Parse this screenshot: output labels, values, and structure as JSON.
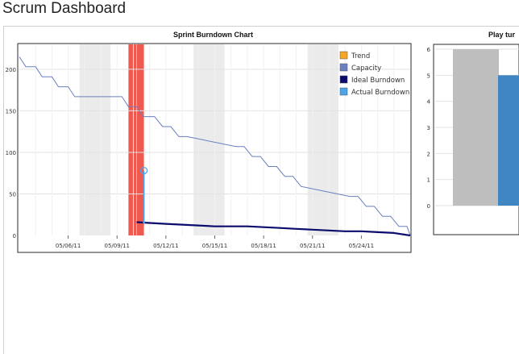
{
  "page": {
    "title": "Scrum Dashboard"
  },
  "burndown": {
    "title": "Sprint Burndown Chart",
    "legend": [
      {
        "label": "Trend",
        "color": "#f5a623"
      },
      {
        "label": "Capacity",
        "color": "#6b7fc0"
      },
      {
        "label": "Ideal Burndown",
        "color": "#0b0b6e"
      },
      {
        "label": "Actual Burndown",
        "color": "#4da3e8"
      }
    ],
    "y_ticks": [
      "0",
      "50",
      "100",
      "150",
      "200"
    ],
    "x_ticks": [
      "05/06/11",
      "05/09/11",
      "05/12/11",
      "05/15/11",
      "05/18/11",
      "05/21/11",
      "05/24/11"
    ]
  },
  "play_chart": {
    "title": "Play tur",
    "y_ticks": [
      "0",
      "1",
      "2",
      "3",
      "4",
      "5",
      "6"
    ]
  },
  "chart_data": [
    {
      "type": "line",
      "title": "Sprint Burndown Chart",
      "x_unit": "day of sprint (start ≈ 05/03/11)",
      "ylim": [
        0,
        230
      ],
      "xlim": [
        0,
        24
      ],
      "weekend_bands": [
        [
          3.7,
          5.6
        ],
        [
          10.7,
          12.6
        ],
        [
          17.7,
          19.6
        ]
      ],
      "today_band": [
        6.7,
        7.65
      ],
      "series": [
        {
          "name": "Capacity",
          "color": "#6b7fc0",
          "x": [
            0,
            0.4,
            1,
            1.4,
            2,
            2.4,
            3,
            3.4,
            6.3,
            6.7,
            7.2,
            7.6,
            8.3,
            8.8,
            9.3,
            9.8,
            10.3,
            13.3,
            13.8,
            14.3,
            14.8,
            15.3,
            15.8,
            16.3,
            16.8,
            17.3,
            20.3,
            20.8,
            21.3,
            21.8,
            22.3,
            22.8,
            23.3,
            23.8,
            24
          ],
          "y": [
            215,
            203,
            203,
            191,
            191,
            179,
            179,
            167,
            167,
            155,
            155,
            143,
            143,
            131,
            131,
            119,
            119,
            107,
            107,
            95,
            95,
            83,
            83,
            71,
            71,
            59,
            47,
            47,
            35,
            35,
            23,
            23,
            11,
            11,
            0
          ]
        },
        {
          "name": "Ideal Burndown",
          "color": "#0b0b6e",
          "x": [
            7.2,
            8,
            9,
            10,
            11,
            12,
            13,
            14,
            15,
            16,
            17,
            18,
            19,
            20,
            21,
            22,
            23,
            24
          ],
          "y": [
            16,
            15,
            14,
            13,
            12,
            11,
            11,
            11,
            10,
            9,
            8,
            7,
            6,
            5,
            5,
            4,
            3,
            0
          ]
        },
        {
          "name": "Actual Burndown",
          "color": "#4da3e8",
          "x": [
            7.65,
            7.65
          ],
          "y": [
            16,
            78
          ]
        }
      ]
    },
    {
      "type": "bar",
      "title": "Play tur",
      "ylim": [
        0,
        6
      ],
      "categories": [
        "",
        ""
      ],
      "series": [
        {
          "values": [
            6,
            5
          ]
        }
      ],
      "colors": [
        "#bebebe",
        "#3f86c2"
      ]
    }
  ]
}
